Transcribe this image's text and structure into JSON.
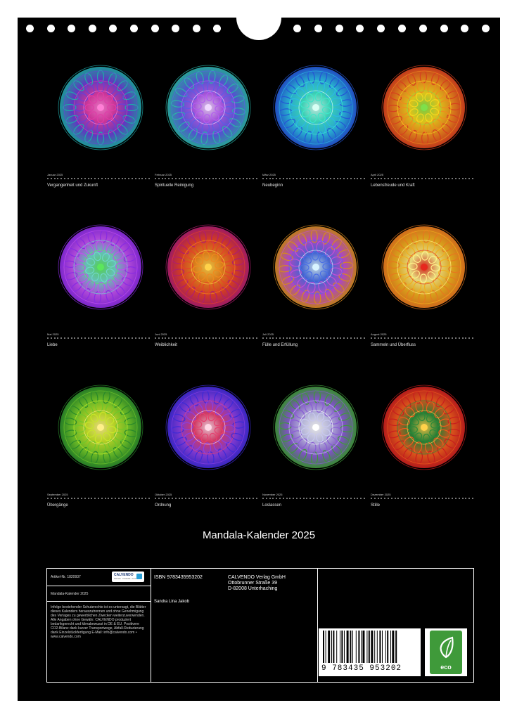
{
  "calendar": {
    "title": "Mandala-Kalender 2025",
    "months": [
      {
        "name": "Januar 2025",
        "title": "Vergangenheit und Zukunft",
        "palette": [
          "#1fa9a9",
          "#6a3fd6",
          "#e03ca8",
          "#ff7fd6"
        ]
      },
      {
        "name": "Februar 2025",
        "title": "Spirituelle Reinigung",
        "palette": [
          "#2bb3a8",
          "#5c5ce6",
          "#b45cf0",
          "#f0d8ff"
        ]
      },
      {
        "name": "März 2025",
        "title": "Neubeginn",
        "palette": [
          "#2456d6",
          "#2bb8e6",
          "#3fe6c8",
          "#d8fff4"
        ]
      },
      {
        "name": "April 2025",
        "title": "Lebensfreude und Kraft",
        "palette": [
          "#d6401e",
          "#f08a1e",
          "#f5d81e",
          "#7fe04a"
        ]
      },
      {
        "name": "Mai 2025",
        "title": "Liebe",
        "palette": [
          "#8a2be2",
          "#c04ff0",
          "#6fd6c8",
          "#5ce65c"
        ]
      },
      {
        "name": "Juni 2025",
        "title": "Weiblichkeit",
        "palette": [
          "#b01e6e",
          "#e6402a",
          "#f08a1e",
          "#ffd24a"
        ]
      },
      {
        "name": "Juli 2025",
        "title": "Fülle und Erfüllung",
        "palette": [
          "#d68a1e",
          "#c04fd6",
          "#4a6fe6",
          "#d8f4ff"
        ]
      },
      {
        "name": "August 2025",
        "title": "Sammeln und Überfluss",
        "palette": [
          "#e6781e",
          "#f0b01e",
          "#fff08a",
          "#e6281e"
        ]
      },
      {
        "name": "September 2025",
        "title": "Übergänge",
        "palette": [
          "#2a8a2a",
          "#6fc82a",
          "#c8e62a",
          "#fff08a"
        ]
      },
      {
        "name": "Oktober 2025",
        "title": "Ordnung",
        "palette": [
          "#3f2ad6",
          "#8a3fe6",
          "#e6406f",
          "#ffd8e6"
        ]
      },
      {
        "name": "November 2025",
        "title": "Loslassen",
        "palette": [
          "#3f9a3a",
          "#8a5cd6",
          "#c8c8f0",
          "#ffffff"
        ]
      },
      {
        "name": "Dezember 2025",
        "title": "Stille",
        "palette": [
          "#c81e1e",
          "#f05a1e",
          "#2a8a3a",
          "#ffd24a"
        ]
      }
    ]
  },
  "info": {
    "art_label": "Artikel-Nr.  1820937",
    "logo_word": "CALVENDO",
    "logo_sub": "Kalender · Kreativität · Kunst",
    "small_title": "Mandala-Kalender 2025",
    "legal": "Infolge bestehender Schutzrechte ist es untersagt, die Blätter dieses Kalenders herauszutrennen und ohne Genehmigung des Verlages zu gewerblichen Zwecken weiterzuverwenden. Alle Angaben ohne Gewähr. CALVENDO produziert bedarfsgerecht und klimabewusst in DE & EU. Positivere CO2-Bilanz dank kurzer Transportwege, Abfall-Reduzierung dank Einzelstückfertigung E-Mail: info@calvendo.com • www.calvendo.com",
    "isbn": "ISBN 9783435953202",
    "author": "Sandra Lina Jakob",
    "publisher_line1": "CALVENDO Verlag GmbH",
    "publisher_line2": "Ottobrunner Straße 39",
    "publisher_line3": "D-82008 Unterhaching",
    "barcode_digits": "9 783435 953202",
    "eco_label": "eco"
  }
}
